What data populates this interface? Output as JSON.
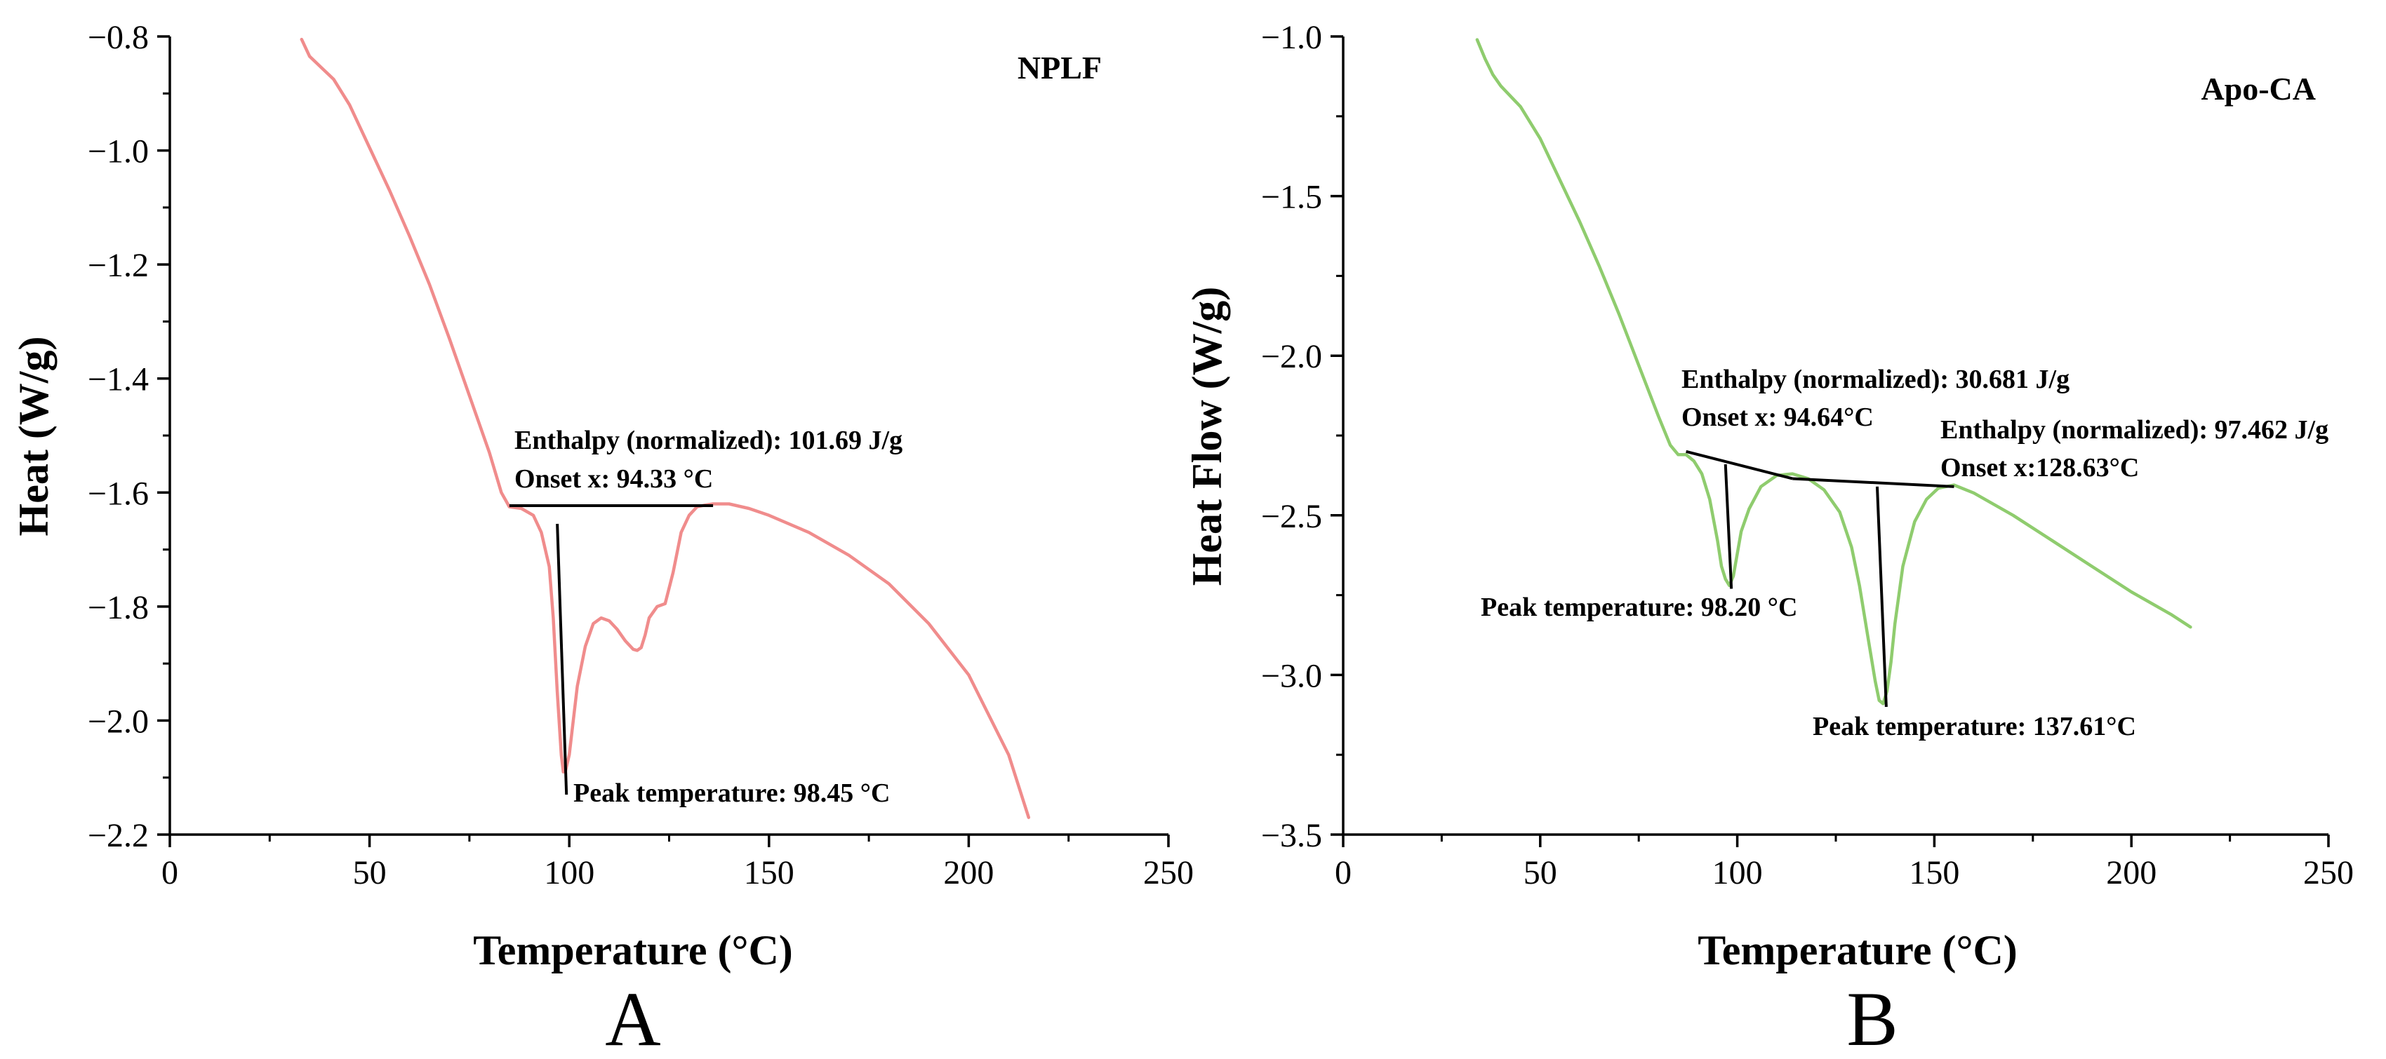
{
  "chart_data": [
    {
      "type": "line",
      "panel_letter": "A",
      "series_name": "NPLF",
      "color": "#f08c8c",
      "xlabel": "Temperature (°C)",
      "ylabel": "Heat (W/g)",
      "xlim": [
        0,
        250
      ],
      "ylim": [
        -2.2,
        -0.8
      ],
      "xticks": [
        0,
        50,
        100,
        150,
        200,
        250
      ],
      "xtick_labels": [
        "0",
        "50",
        "100",
        "150",
        "200",
        "250"
      ],
      "yticks": [
        -0.8,
        -1.0,
        -1.2,
        -1.4,
        -1.6,
        -1.8,
        -2.0,
        -2.2
      ],
      "ytick_labels": [
        "−0.8",
        "−1.0",
        "−1.2",
        "−1.4",
        "−1.6",
        "−1.8",
        "−2.0",
        "−2.2"
      ],
      "series": [
        {
          "name": "NPLF",
          "x": [
            33,
            35,
            38,
            41,
            45,
            50,
            55,
            60,
            65,
            70,
            75,
            80,
            83,
            85,
            88,
            91,
            93,
            95,
            96,
            97,
            98,
            98.5,
            99,
            100,
            101,
            102,
            104,
            106,
            108,
            110,
            112,
            114,
            116,
            117,
            118,
            119,
            120,
            122,
            124,
            126,
            128,
            130,
            132,
            134,
            136,
            140,
            145,
            150,
            160,
            170,
            180,
            190,
            200,
            210,
            215
          ],
          "values": [
            -0.805,
            -0.835,
            -0.855,
            -0.875,
            -0.92,
            -0.995,
            -1.07,
            -1.15,
            -1.235,
            -1.33,
            -1.43,
            -1.53,
            -1.6,
            -1.625,
            -1.628,
            -1.64,
            -1.67,
            -1.73,
            -1.82,
            -1.95,
            -2.06,
            -2.09,
            -2.09,
            -2.06,
            -2.0,
            -1.94,
            -1.87,
            -1.83,
            -1.82,
            -1.825,
            -1.84,
            -1.86,
            -1.875,
            -1.877,
            -1.872,
            -1.85,
            -1.82,
            -1.8,
            -1.795,
            -1.74,
            -1.67,
            -1.64,
            -1.625,
            -1.622,
            -1.62,
            -1.62,
            -1.628,
            -1.64,
            -1.67,
            -1.71,
            -1.76,
            -1.83,
            -1.92,
            -2.06,
            -2.17
          ]
        }
      ],
      "annotations": {
        "enthalpy": "Enthalpy (normalized): 101.69 J/g",
        "onset": "Onset x: 94.33 °C",
        "peak": "Peak temperature: 98.45 °C"
      },
      "baseline": {
        "x": [
          85,
          136
        ],
        "y": [
          -1.623,
          -1.623
        ]
      },
      "peak_line": {
        "x": [
          97,
          99.3
        ],
        "y": [
          -1.655,
          -2.13
        ]
      }
    },
    {
      "type": "line",
      "panel_letter": "B",
      "series_name": "Apo-CA",
      "color": "#8fcc6e",
      "xlabel": "Temperature (°C)",
      "ylabel": "Heat Flow (W/g)",
      "xlim": [
        0,
        250
      ],
      "ylim": [
        -3.5,
        -1.0
      ],
      "xticks": [
        0,
        50,
        100,
        150,
        200,
        250
      ],
      "xtick_labels": [
        "0",
        "50",
        "100",
        "150",
        "200",
        "250"
      ],
      "yticks": [
        -1.0,
        -1.5,
        -2.0,
        -2.5,
        -3.0,
        -3.5
      ],
      "ytick_labels": [
        "−1.0",
        "−1.5",
        "−2.0",
        "−2.5",
        "−3.0",
        "−3.5"
      ],
      "series": [
        {
          "name": "Apo-CA",
          "x": [
            34,
            36,
            38,
            40,
            45,
            50,
            55,
            60,
            65,
            70,
            75,
            80,
            83,
            85,
            87,
            89,
            91,
            93,
            95,
            96,
            97,
            98,
            99,
            100,
            101,
            103,
            106,
            110,
            114,
            118,
            122,
            126,
            129,
            131,
            133,
            135,
            136,
            137,
            138,
            139,
            140,
            142,
            145,
            148,
            151,
            155,
            160,
            170,
            180,
            190,
            200,
            210,
            215
          ],
          "values": [
            -1.01,
            -1.07,
            -1.12,
            -1.155,
            -1.22,
            -1.32,
            -1.45,
            -1.58,
            -1.72,
            -1.87,
            -2.03,
            -2.19,
            -2.28,
            -2.31,
            -2.31,
            -2.33,
            -2.37,
            -2.45,
            -2.58,
            -2.66,
            -2.7,
            -2.72,
            -2.69,
            -2.62,
            -2.55,
            -2.48,
            -2.41,
            -2.375,
            -2.37,
            -2.385,
            -2.42,
            -2.49,
            -2.6,
            -2.72,
            -2.87,
            -3.02,
            -3.08,
            -3.09,
            -3.05,
            -2.96,
            -2.84,
            -2.66,
            -2.52,
            -2.45,
            -2.415,
            -2.405,
            -2.43,
            -2.5,
            -2.58,
            -2.66,
            -2.74,
            -2.81,
            -2.85
          ]
        }
      ],
      "annotations": {
        "enthalpy_1": "Enthalpy (normalized): 30.681 J/g",
        "onset_1": "Onset x: 94.64°C",
        "enthalpy_2": "Enthalpy (normalized): 97.462 J/g",
        "onset_2": "Onset x:128.63°C",
        "peak_1": "Peak temperature: 98.20 °C",
        "peak_2": "Peak temperature: 137.61°C"
      },
      "baselines": [
        {
          "x": [
            87,
            114
          ],
          "y": [
            -2.3,
            -2.385
          ]
        },
        {
          "x": [
            114,
            155
          ],
          "y": [
            -2.385,
            -2.41
          ]
        }
      ],
      "peak_lines": [
        {
          "x": [
            97,
            98.5
          ],
          "y": [
            -2.34,
            -2.73
          ]
        },
        {
          "x": [
            135.5,
            137.8
          ],
          "y": [
            -2.41,
            -3.1
          ]
        }
      ]
    }
  ]
}
